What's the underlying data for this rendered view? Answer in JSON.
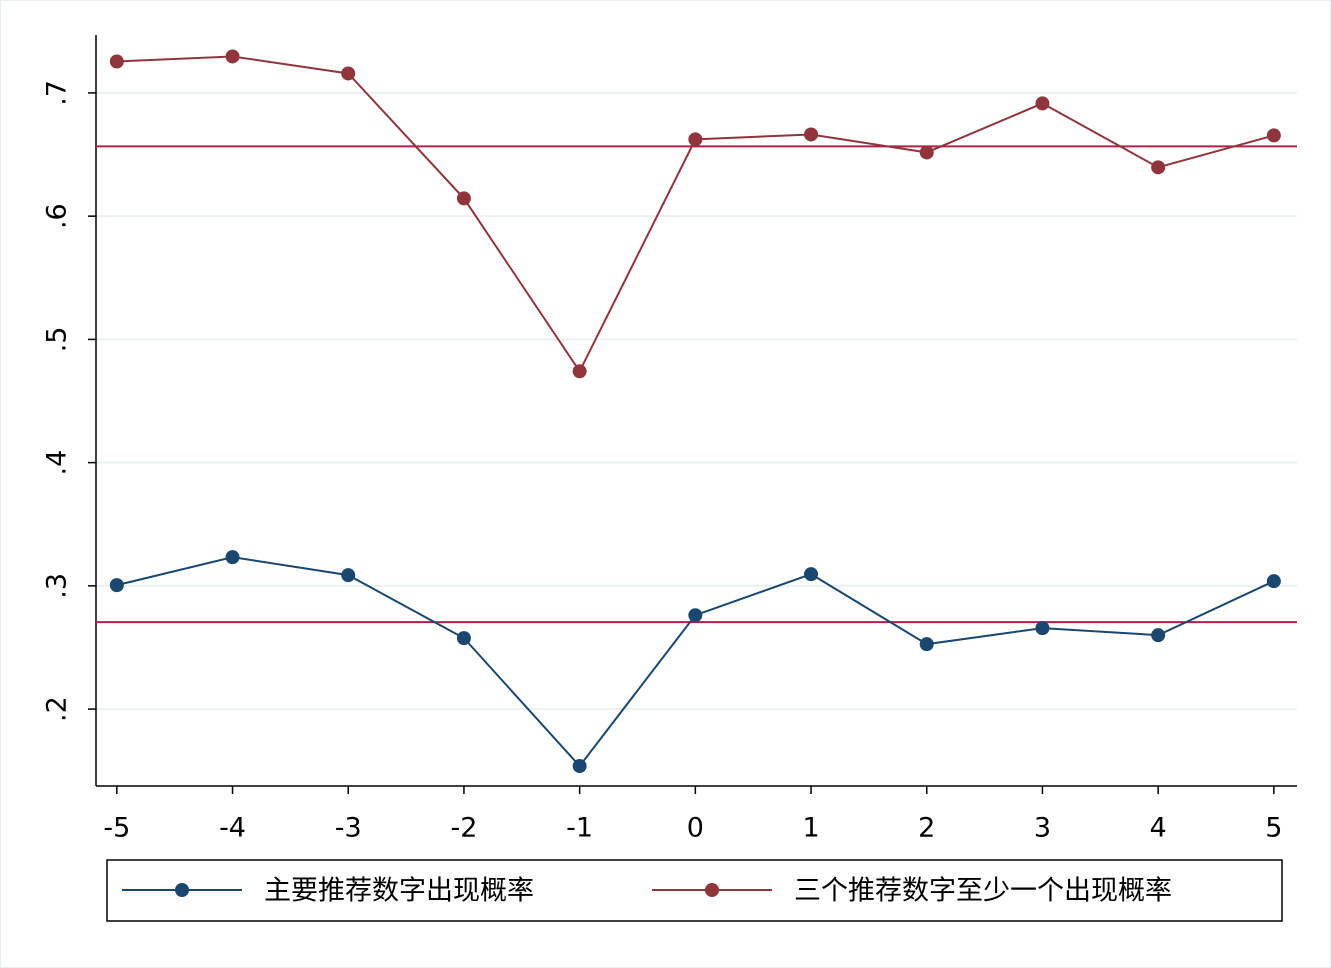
{
  "chart_data": {
    "type": "line",
    "x": [
      -5,
      -4,
      -3,
      -2,
      -1,
      0,
      1,
      2,
      3,
      4,
      5
    ],
    "series": [
      {
        "name": "主要推荐数字出现概率",
        "color": "#1a476f",
        "values": [
          0.3006,
          0.3233,
          0.3087,
          0.2576,
          0.1538,
          0.2762,
          0.3095,
          0.2527,
          0.2657,
          0.26,
          0.3038
        ]
      },
      {
        "name": "三个推荐数字至少一个出现概率",
        "color": "#90353b",
        "values": [
          0.7255,
          0.7296,
          0.7158,
          0.6144,
          0.4741,
          0.6623,
          0.6663,
          0.6517,
          0.6915,
          0.6396,
          0.6655
        ]
      }
    ],
    "reference_lines": {
      "values": [
        0.6566,
        0.2706
      ],
      "color": "#b0204a"
    },
    "xlim": [
      -5.18,
      5.2
    ],
    "xticks": [
      -5,
      -4,
      -3,
      -2,
      -1,
      0,
      1,
      2,
      3,
      4,
      5
    ],
    "ylim": [
      0.1376,
      0.747
    ],
    "yticks": [
      {
        "value": 0.2,
        "label": ".2"
      },
      {
        "value": 0.3,
        "label": ".3"
      },
      {
        "value": 0.4,
        "label": ".4"
      },
      {
        "value": 0.5,
        "label": ".5"
      },
      {
        "value": 0.6,
        "label": ".6"
      },
      {
        "value": 0.7,
        "label": ".7"
      }
    ],
    "grid": true,
    "legend": "bottom"
  }
}
